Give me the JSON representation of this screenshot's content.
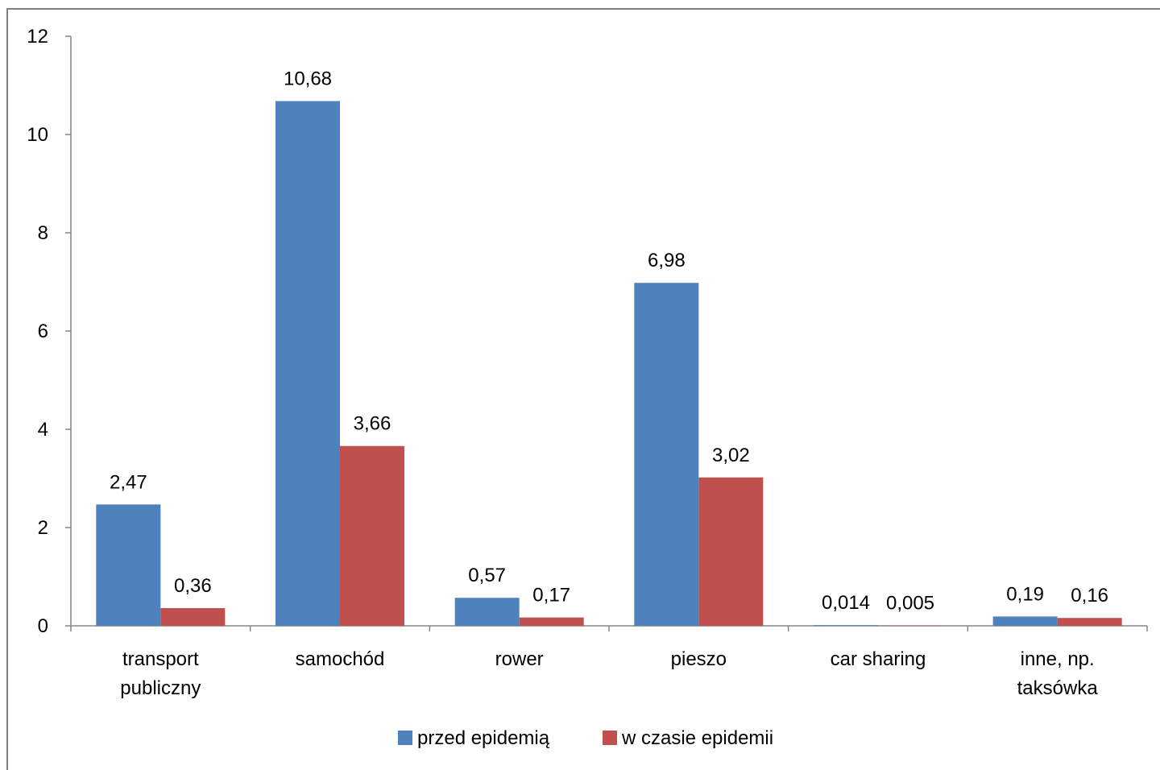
{
  "chart_data": {
    "type": "bar",
    "categories": [
      [
        "transport",
        "publiczny"
      ],
      [
        "samochód"
      ],
      [
        "rower"
      ],
      [
        "pieszo"
      ],
      [
        "car sharing"
      ],
      [
        "inne, np.",
        "taksówka"
      ]
    ],
    "series": [
      {
        "name": "przed epidemią",
        "color": "#4F81BD",
        "values": [
          2.47,
          10.68,
          0.57,
          6.98,
          0.014,
          0.19
        ],
        "labels": [
          "2,47",
          "10,68",
          "0,57",
          "6,98",
          "0,014",
          "0,19"
        ]
      },
      {
        "name": "w czasie epidemii",
        "color": "#C0504D",
        "values": [
          0.36,
          3.66,
          0.17,
          3.02,
          0.005,
          0.16
        ],
        "labels": [
          "0,36",
          "3,66",
          "0,17",
          "3,02",
          "0,005",
          "0,16"
        ]
      }
    ],
    "ylim": [
      0,
      12
    ],
    "yticks": [
      "0",
      "2",
      "4",
      "6",
      "8",
      "10",
      "12"
    ],
    "grid": false,
    "legend_position": "bottom"
  }
}
